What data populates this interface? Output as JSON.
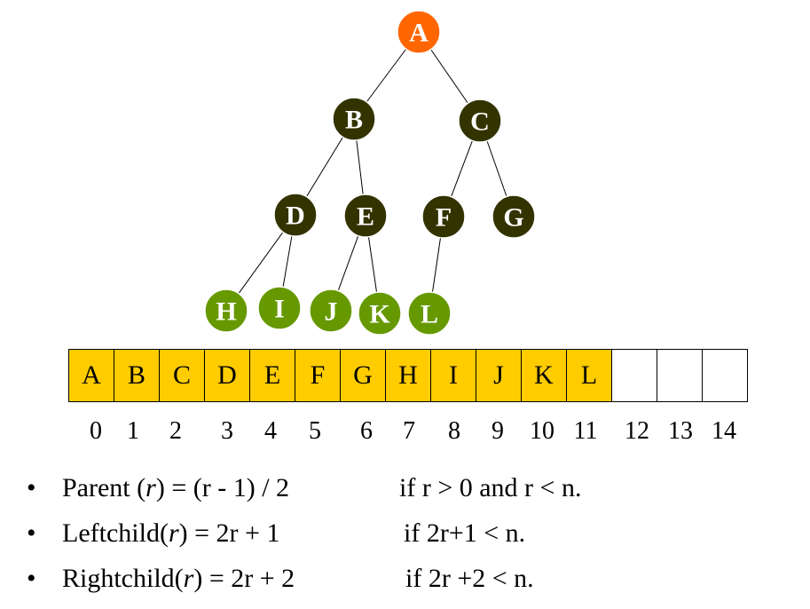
{
  "tree": {
    "root_color": "#ff6600",
    "inner_color": "#333300",
    "leaf_color": "#669900",
    "nodes": [
      {
        "id": "A",
        "level": 0
      },
      {
        "id": "B",
        "level": 1
      },
      {
        "id": "C",
        "level": 1
      },
      {
        "id": "D",
        "level": 2
      },
      {
        "id": "E",
        "level": 2
      },
      {
        "id": "F",
        "level": 2
      },
      {
        "id": "G",
        "level": 2
      },
      {
        "id": "H",
        "level": 3
      },
      {
        "id": "I",
        "level": 3
      },
      {
        "id": "J",
        "level": 3
      },
      {
        "id": "K",
        "level": 3
      },
      {
        "id": "L",
        "level": 3
      }
    ],
    "edges": [
      [
        "A",
        "B"
      ],
      [
        "A",
        "C"
      ],
      [
        "B",
        "D"
      ],
      [
        "B",
        "E"
      ],
      [
        "C",
        "F"
      ],
      [
        "C",
        "G"
      ],
      [
        "D",
        "H"
      ],
      [
        "D",
        "I"
      ],
      [
        "E",
        "J"
      ],
      [
        "E",
        "K"
      ],
      [
        "F",
        "L"
      ]
    ]
  },
  "array": {
    "fill_color": "#ffcc00",
    "cells": [
      "A",
      "B",
      "C",
      "D",
      "E",
      "F",
      "G",
      "H",
      "I",
      "J",
      "K",
      "L",
      "",
      "",
      ""
    ],
    "indices": [
      "0",
      "1",
      "2",
      "3",
      "4",
      "5",
      "6",
      "7",
      "8",
      "9",
      "10",
      "11",
      "12",
      "13",
      "14"
    ]
  },
  "rules": [
    {
      "bullet": "•",
      "name": "Parent (",
      "var": "r",
      "rest": ")   = (r - 1) / 2",
      "condition": "if  r > 0 and r < n."
    },
    {
      "bullet": "•",
      "name": "Leftchild(",
      "var": "r",
      "rest": ") = 2r + 1",
      "condition": "if  2r+1 < n."
    },
    {
      "bullet": "•",
      "name": "Rightchild(",
      "var": "r",
      "rest": ") = 2r + 2",
      "condition": "if  2r +2 < n."
    }
  ]
}
